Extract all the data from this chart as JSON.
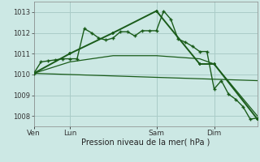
{
  "background_color": "#cce8e4",
  "grid_color": "#aaccc8",
  "line_color": "#1a5c1a",
  "xlabel": "Pression niveau de la mer( hPa )",
  "ylim": [
    1007.5,
    1013.5
  ],
  "yticks": [
    1008,
    1009,
    1010,
    1011,
    1012,
    1013
  ],
  "day_labels": [
    "Ven",
    "Lun",
    "Sam",
    "Dim"
  ],
  "day_positions": [
    0,
    5,
    17,
    25
  ],
  "xlim": [
    0,
    31
  ],
  "series1_x": [
    0,
    1,
    2,
    3,
    4,
    5,
    6,
    7,
    8,
    9,
    10,
    11,
    12,
    13,
    14,
    15,
    16,
    17,
    18,
    19,
    20,
    21,
    22,
    23,
    24,
    25,
    26,
    27,
    28,
    29,
    30,
    31
  ],
  "series1_y": [
    1010.05,
    1010.6,
    1010.65,
    1010.7,
    1010.75,
    1010.75,
    1010.75,
    1012.2,
    1012.0,
    1011.75,
    1011.65,
    1011.75,
    1012.05,
    1012.05,
    1011.85,
    1012.1,
    1012.1,
    1012.1,
    1013.05,
    1012.65,
    1011.7,
    1011.55,
    1011.35,
    1011.1,
    1011.1,
    1009.3,
    1009.7,
    1009.05,
    1008.8,
    1008.45,
    1007.85,
    1007.9
  ],
  "series2_x": [
    0,
    5,
    11,
    17,
    23,
    25,
    31
  ],
  "series2_y": [
    1010.05,
    1011.0,
    1012.0,
    1013.05,
    1010.5,
    1010.5,
    1007.85
  ],
  "series3_x": [
    0,
    5,
    11,
    17,
    23,
    25,
    31
  ],
  "series3_y": [
    1010.05,
    1010.6,
    1010.9,
    1010.9,
    1010.75,
    1010.5,
    1008.0
  ],
  "series4_x": [
    0,
    31
  ],
  "series4_y": [
    1010.05,
    1009.7
  ]
}
